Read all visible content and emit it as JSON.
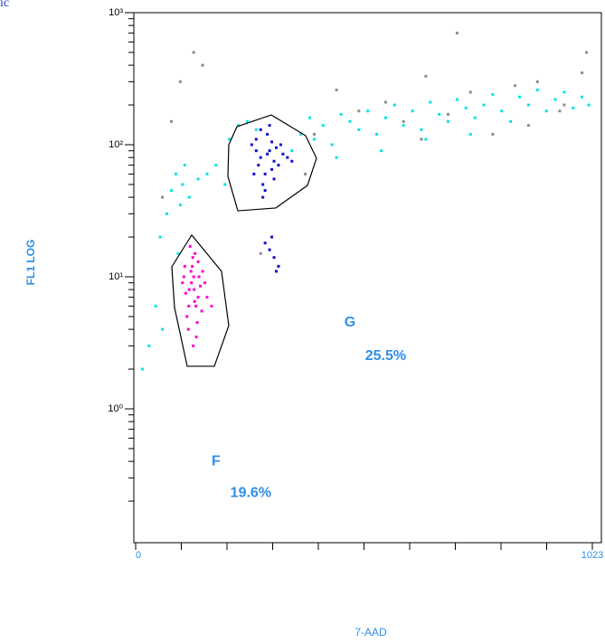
{
  "corner_text": "ic",
  "chart_data": {
    "type": "scatter",
    "x_label": "7-AAD",
    "y_label": "FL1 LOG",
    "xlim": [
      0,
      1023
    ],
    "xticks": [
      0,
      1023
    ],
    "xminor_ticks": [
      102.3,
      204.6,
      306.9,
      409.2,
      511.5,
      613.8,
      716.1,
      818.4,
      920.7
    ],
    "ylim": [
      0.1,
      1000
    ],
    "ylog": true,
    "yticks": [
      {
        "value": 1,
        "label": "10⁰"
      },
      {
        "value": 10,
        "label": "10¹"
      },
      {
        "value": 100,
        "label": "10²"
      },
      {
        "value": 1000,
        "label": "10³"
      }
    ],
    "annotations": [
      {
        "text": "G",
        "x": 480,
        "y": 4.5
      },
      {
        "text": "25.5%",
        "x": 560,
        "y": 2.5
      },
      {
        "text": "F",
        "x": 180,
        "y": 0.4
      },
      {
        "text": "19.6%",
        "x": 258,
        "y": 0.23
      }
    ],
    "gates": [
      {
        "x": [
          125.6,
          192.4,
          208.6,
          176.2,
          115.5,
          87.1,
          81.0
        ],
        "values": [
          20.7,
          11.0,
          4.27,
          2.1,
          2.1,
          5.85,
          11.9
        ]
      },
      {
        "x": [
          226.9,
          303.9,
          380.8,
          405.1,
          384.9,
          314.0,
          228.9,
          206.6,
          208.6
        ],
        "values": [
          137,
          168,
          117,
          78.9,
          49.2,
          33.2,
          31.6,
          57.6,
          100
        ]
      }
    ],
    "series": [
      {
        "color": "#00e5e5",
        "x": [
          15,
          30,
          45,
          55,
          60,
          70,
          80,
          90,
          95,
          100,
          105,
          110,
          120,
          140,
          160,
          180,
          200,
          210,
          230,
          250,
          270,
          350,
          370,
          390,
          400,
          420,
          440,
          460,
          480,
          500,
          520,
          540,
          560,
          580,
          600,
          620,
          640,
          660,
          680,
          700,
          720,
          740,
          760,
          780,
          800,
          820,
          840,
          860,
          880,
          900,
          920,
          940,
          960,
          980,
          1000,
          1015,
          450,
          550,
          650,
          750
        ],
        "values": [
          2,
          3,
          6,
          20,
          4,
          30,
          45,
          60,
          15,
          35,
          50,
          70,
          40,
          55,
          60,
          70,
          50,
          110,
          140,
          150,
          130,
          90,
          120,
          160,
          110,
          140,
          100,
          170,
          150,
          130,
          180,
          120,
          160,
          200,
          140,
          180,
          130,
          210,
          170,
          150,
          220,
          190,
          160,
          200,
          240,
          180,
          150,
          230,
          200,
          260,
          180,
          220,
          250,
          190,
          230,
          200,
          80,
          90,
          110,
          120
        ]
      },
      {
        "color": "#8c8c8c",
        "x": [
          60,
          80,
          100,
          130,
          150,
          400,
          450,
          500,
          560,
          600,
          650,
          700,
          750,
          800,
          850,
          900,
          950,
          1000,
          1010,
          720,
          880,
          640,
          960,
          280,
          380
        ],
        "values": [
          40,
          150,
          300,
          500,
          400,
          120,
          260,
          180,
          210,
          150,
          330,
          170,
          250,
          120,
          280,
          300,
          180,
          350,
          500,
          700,
          140,
          110,
          200,
          15,
          60
        ]
      },
      {
        "color": "#ff00cc",
        "x": [
          120,
          130,
          140,
          110,
          135,
          125,
          150,
          115,
          145,
          128,
          138,
          105,
          160,
          122,
          132,
          142,
          118,
          127,
          148,
          112,
          136,
          124,
          155,
          131,
          140,
          119,
          129,
          170,
          108,
          133
        ],
        "values": [
          8,
          10,
          7,
          12,
          6,
          9,
          11,
          5,
          8.5,
          14,
          4.5,
          9,
          7,
          17,
          6.5,
          10,
          4,
          12,
          5.5,
          7.5,
          3.5,
          11,
          9,
          8,
          13,
          6,
          3,
          6,
          10,
          15
        ]
      },
      {
        "color": "#1010cc",
        "x": [
          280,
          300,
          320,
          260,
          290,
          310,
          270,
          330,
          295,
          285,
          305,
          315,
          275,
          340,
          265,
          300,
          325,
          290,
          310,
          280,
          295,
          270,
          350,
          305,
          285,
          300,
          310,
          320,
          290,
          315,
          305
        ],
        "values": [
          80,
          90,
          70,
          100,
          60,
          75,
          110,
          85,
          120,
          50,
          65,
          95,
          70,
          80,
          60,
          140,
          100,
          45,
          55,
          130,
          85,
          90,
          75,
          105,
          40,
          16,
          14,
          12,
          18,
          11,
          20
        ]
      }
    ]
  }
}
